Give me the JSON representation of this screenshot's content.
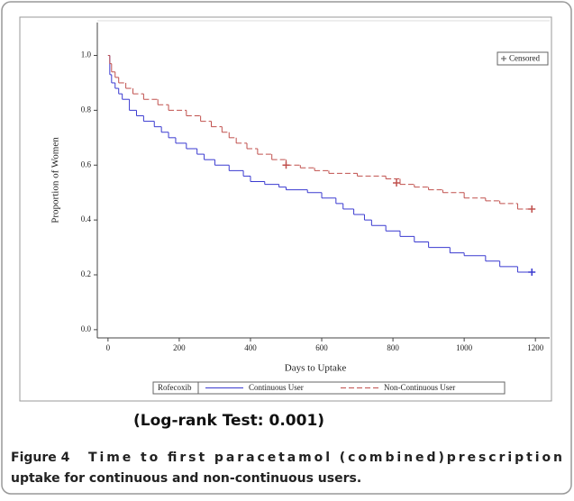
{
  "chart_data": {
    "type": "step",
    "xlabel": "Days to Uptake",
    "ylabel": "Proportion of Women",
    "xlim": [
      -30,
      1240
    ],
    "ylim": [
      -0.03,
      1.12
    ],
    "xticks": [
      0,
      200,
      400,
      600,
      800,
      1000,
      1200
    ],
    "yticks": [
      {
        "value": 0,
        "label": "0.0"
      },
      {
        "value": 0.2,
        "label": "0.2"
      },
      {
        "value": 0.4,
        "label": "0.4"
      },
      {
        "value": 0.6,
        "label": "0.6"
      },
      {
        "value": 0.8,
        "label": "0.8"
      },
      {
        "value": 1,
        "label": "1.0"
      }
    ],
    "legend_title": "Rofecoxib",
    "censored_label": "Censored",
    "series": [
      {
        "name": "Continuous User",
        "color": "#3a3ad0",
        "dash": false,
        "x": [
          0,
          5,
          10,
          20,
          30,
          40,
          60,
          80,
          100,
          130,
          150,
          170,
          190,
          220,
          250,
          270,
          300,
          340,
          380,
          400,
          440,
          480,
          500,
          560,
          600,
          640,
          660,
          690,
          720,
          740,
          780,
          820,
          860,
          900,
          960,
          1000,
          1060,
          1100,
          1150,
          1190
        ],
        "values": [
          1.0,
          0.93,
          0.9,
          0.88,
          0.86,
          0.84,
          0.8,
          0.78,
          0.76,
          0.74,
          0.72,
          0.7,
          0.68,
          0.66,
          0.64,
          0.62,
          0.6,
          0.58,
          0.56,
          0.54,
          0.53,
          0.52,
          0.51,
          0.5,
          0.48,
          0.46,
          0.44,
          0.42,
          0.4,
          0.38,
          0.36,
          0.34,
          0.32,
          0.3,
          0.28,
          0.27,
          0.25,
          0.23,
          0.21,
          0.21
        ],
        "censored_x": [
          1190
        ],
        "censored_values": [
          0.21
        ]
      },
      {
        "name": "Non-Continuous User",
        "color": "#c0504d",
        "dash": true,
        "x": [
          0,
          5,
          10,
          20,
          30,
          50,
          70,
          100,
          140,
          170,
          220,
          260,
          290,
          320,
          340,
          360,
          390,
          420,
          460,
          500,
          540,
          580,
          620,
          700,
          780,
          820,
          860,
          900,
          940,
          1000,
          1060,
          1100,
          1150,
          1190
        ],
        "values": [
          1.0,
          0.97,
          0.94,
          0.92,
          0.9,
          0.88,
          0.86,
          0.84,
          0.82,
          0.8,
          0.78,
          0.76,
          0.74,
          0.72,
          0.7,
          0.68,
          0.66,
          0.64,
          0.62,
          0.6,
          0.59,
          0.58,
          0.57,
          0.56,
          0.55,
          0.53,
          0.52,
          0.51,
          0.5,
          0.48,
          0.47,
          0.46,
          0.44,
          0.44
        ],
        "censored_x": [
          500,
          810,
          1190
        ],
        "censored_values": [
          0.6,
          0.535,
          0.44
        ]
      }
    ],
    "annotation": "(Log-rank Test: 0.001)"
  },
  "caption": {
    "label": "Figure 4",
    "line1": "Time to first paracetamol (combined)prescription",
    "line2": "uptake for continuous and non-continuous users."
  }
}
